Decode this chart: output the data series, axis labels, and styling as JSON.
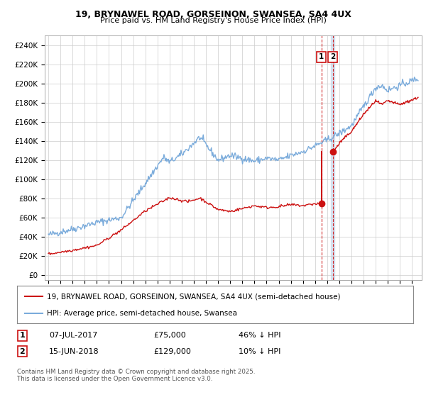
{
  "title_line1": "19, BRYNAWEL ROAD, GORSEINON, SWANSEA, SA4 4UX",
  "title_line2": "Price paid vs. HM Land Registry's House Price Index (HPI)",
  "yticks": [
    0,
    20000,
    40000,
    60000,
    80000,
    100000,
    120000,
    140000,
    160000,
    180000,
    200000,
    220000,
    240000
  ],
  "ytick_labels": [
    "£0",
    "£20K",
    "£40K",
    "£60K",
    "£80K",
    "£100K",
    "£120K",
    "£140K",
    "£160K",
    "£180K",
    "£200K",
    "£220K",
    "£240K"
  ],
  "ylim": [
    -5000,
    250000
  ],
  "hpi_color": "#7aabdb",
  "price_color": "#cc1111",
  "sale1_date": 2017.52,
  "sale1_price": 75000,
  "sale2_date": 2018.46,
  "sale2_price": 129000,
  "vline_color": "#cc1111",
  "shade_color": "#c8d8ec",
  "legend_label1": "19, BRYNAWEL ROAD, GORSEINON, SWANSEA, SA4 4UX (semi-detached house)",
  "legend_label2": "HPI: Average price, semi-detached house, Swansea",
  "table_row1": [
    "1",
    "07-JUL-2017",
    "£75,000",
    "46% ↓ HPI"
  ],
  "table_row2": [
    "2",
    "15-JUN-2018",
    "£129,000",
    "10% ↓ HPI"
  ],
  "footer": "Contains HM Land Registry data © Crown copyright and database right 2025.\nThis data is licensed under the Open Government Licence v3.0.",
  "bg_color": "#ffffff",
  "grid_color": "#cccccc",
  "xmin": 1994.7,
  "xmax": 2025.8
}
